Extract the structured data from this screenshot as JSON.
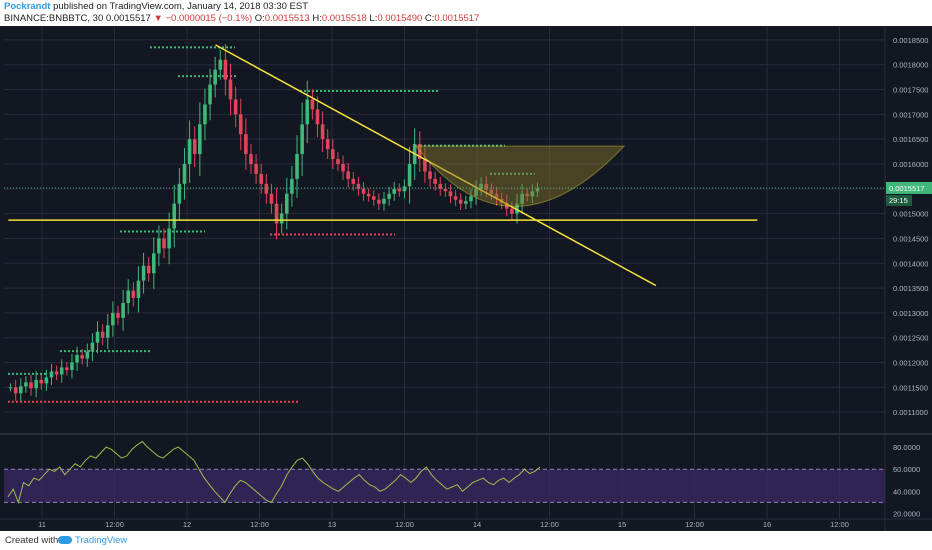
{
  "header": {
    "author": "Pockrandt",
    "published": "published on TradingView.com, January 14, 2018 03:30 EST",
    "symbol": "BINANCE:BNBBTC, 30",
    "last": "0.0015517",
    "change": "−0.0000015 (−0.1%)",
    "open_label": "O:",
    "open": "0.0015513",
    "high_label": "H:",
    "high": "0.0015518",
    "low_label": "L:",
    "low": "0.0015490",
    "close_label": "C:",
    "close": "0.0015517"
  },
  "colors": {
    "bg": "#131722",
    "grid": "#262b3a",
    "up": "#3fb87a",
    "down": "#e0455a",
    "trend": "#f5e23a",
    "rsi": "#9fbf4a",
    "rsi_band": "#3b2a66",
    "price_tag": "#3fb87a",
    "axis_text": "#b2b5be"
  },
  "chart_data": {
    "type": "candlestick",
    "y_ticks": [
      "0.0018500",
      "0.0018000",
      "0.0017500",
      "0.0017000",
      "0.0016500",
      "0.0016000",
      "0.0015500",
      "0.0015000",
      "0.0014500",
      "0.0014000",
      "0.0013500",
      "0.0013000",
      "0.0012500",
      "0.0012000",
      "0.0011500",
      "0.0011000"
    ],
    "y_range": [
      0.00106,
      0.00187
    ],
    "x_ticks": [
      "11",
      "12:00",
      "12",
      "12:00",
      "13",
      "12:00",
      "14",
      "12:00",
      "15",
      "12:00",
      "16",
      "12:00"
    ],
    "price_tag": "0.0015517",
    "countdown": "29:15",
    "closes": [
      0.00115,
      0.001138,
      0.001152,
      0.00116,
      0.001148,
      0.001165,
      0.001158,
      0.00117,
      0.001182,
      0.001176,
      0.00119,
      0.001185,
      0.0012,
      0.001215,
      0.001208,
      0.001222,
      0.00124,
      0.001262,
      0.00125,
      0.001275,
      0.0013,
      0.00129,
      0.00132,
      0.001345,
      0.00133,
      0.001365,
      0.001395,
      0.00138,
      0.00142,
      0.00145,
      0.00143,
      0.00147,
      0.00152,
      0.00156,
      0.0016,
      0.00165,
      0.00162,
      0.00168,
      0.00172,
      0.00176,
      0.00179,
      0.00181,
      0.00177,
      0.00173,
      0.0017,
      0.00166,
      0.00162,
      0.0016,
      0.00158,
      0.00156,
      0.00154,
      0.00152,
      0.00148,
      0.0015,
      0.00154,
      0.00157,
      0.00162,
      0.00168,
      0.00173,
      0.00171,
      0.00168,
      0.00165,
      0.00163,
      0.00161,
      0.0016,
      0.001585,
      0.00157,
      0.00156,
      0.00155,
      0.00154,
      0.001535,
      0.001528,
      0.00152,
      0.00153,
      0.00154,
      0.00155,
      0.001545,
      0.001555,
      0.0016,
      0.00164,
      0.00161,
      0.001585,
      0.00157,
      0.00156,
      0.00155,
      0.001545,
      0.001535,
      0.001528,
      0.00152,
      0.001525,
      0.001535,
      0.00155,
      0.00156,
      0.001548,
      0.00154,
      0.00153,
      0.001522,
      0.00151,
      0.0015,
      0.00152,
      0.00154,
      0.001535,
      0.001545,
      0.001551
    ],
    "rsi": {
      "ticks": [
        "80.0000",
        "60.0000",
        "40.0000",
        "20.0000"
      ],
      "range": [
        15,
        90
      ],
      "band": [
        30,
        60
      ],
      "values": [
        35,
        42,
        30,
        48,
        45,
        52,
        50,
        55,
        60,
        58,
        62,
        55,
        60,
        65,
        62,
        68,
        72,
        70,
        75,
        80,
        78,
        74,
        70,
        72,
        78,
        82,
        85,
        80,
        76,
        72,
        70,
        74,
        78,
        80,
        76,
        72,
        68,
        60,
        52,
        46,
        40,
        35,
        30,
        38,
        45,
        50,
        48,
        44,
        40,
        36,
        32,
        30,
        38,
        45,
        55,
        62,
        68,
        70,
        65,
        58,
        52,
        48,
        45,
        42,
        40,
        44,
        48,
        52,
        55,
        50,
        46,
        44,
        40,
        42,
        46,
        50,
        55,
        52,
        48,
        52,
        58,
        62,
        55,
        50,
        46,
        42,
        44,
        46,
        40,
        44,
        48,
        50,
        52,
        48,
        46,
        50,
        52,
        48,
        52,
        55,
        60,
        56,
        58,
        62
      ]
    },
    "hlines": [
      {
        "price": 0.001835,
        "color": "#3fb87a"
      },
      {
        "price": 0.001777,
        "color": "#3fb87a"
      },
      {
        "price": 0.001747,
        "color": "#3fb87a"
      },
      {
        "price": 0.001637,
        "color": "#3fb87a"
      },
      {
        "price": 0.00158,
        "color": "#3fb87a"
      },
      {
        "price": 0.001464,
        "color": "#3fb87a"
      },
      {
        "price": 0.001458,
        "color": "#e0455a"
      },
      {
        "price": 0.001223,
        "color": "#3fb87a"
      },
      {
        "price": 0.001177,
        "color": "#3fb87a"
      },
      {
        "price": 0.001121,
        "color": "#e0455a"
      }
    ],
    "trendlines": [
      {
        "x1": 0.24,
        "p1": 0.00184,
        "x2": 0.74,
        "p2": 0.001355
      },
      {
        "x1": 0.005,
        "p1": 0.001487,
        "x2": 0.855,
        "p2": 0.001487
      }
    ]
  },
  "footer": {
    "created_with": "Created with",
    "brand": "TradingView"
  }
}
